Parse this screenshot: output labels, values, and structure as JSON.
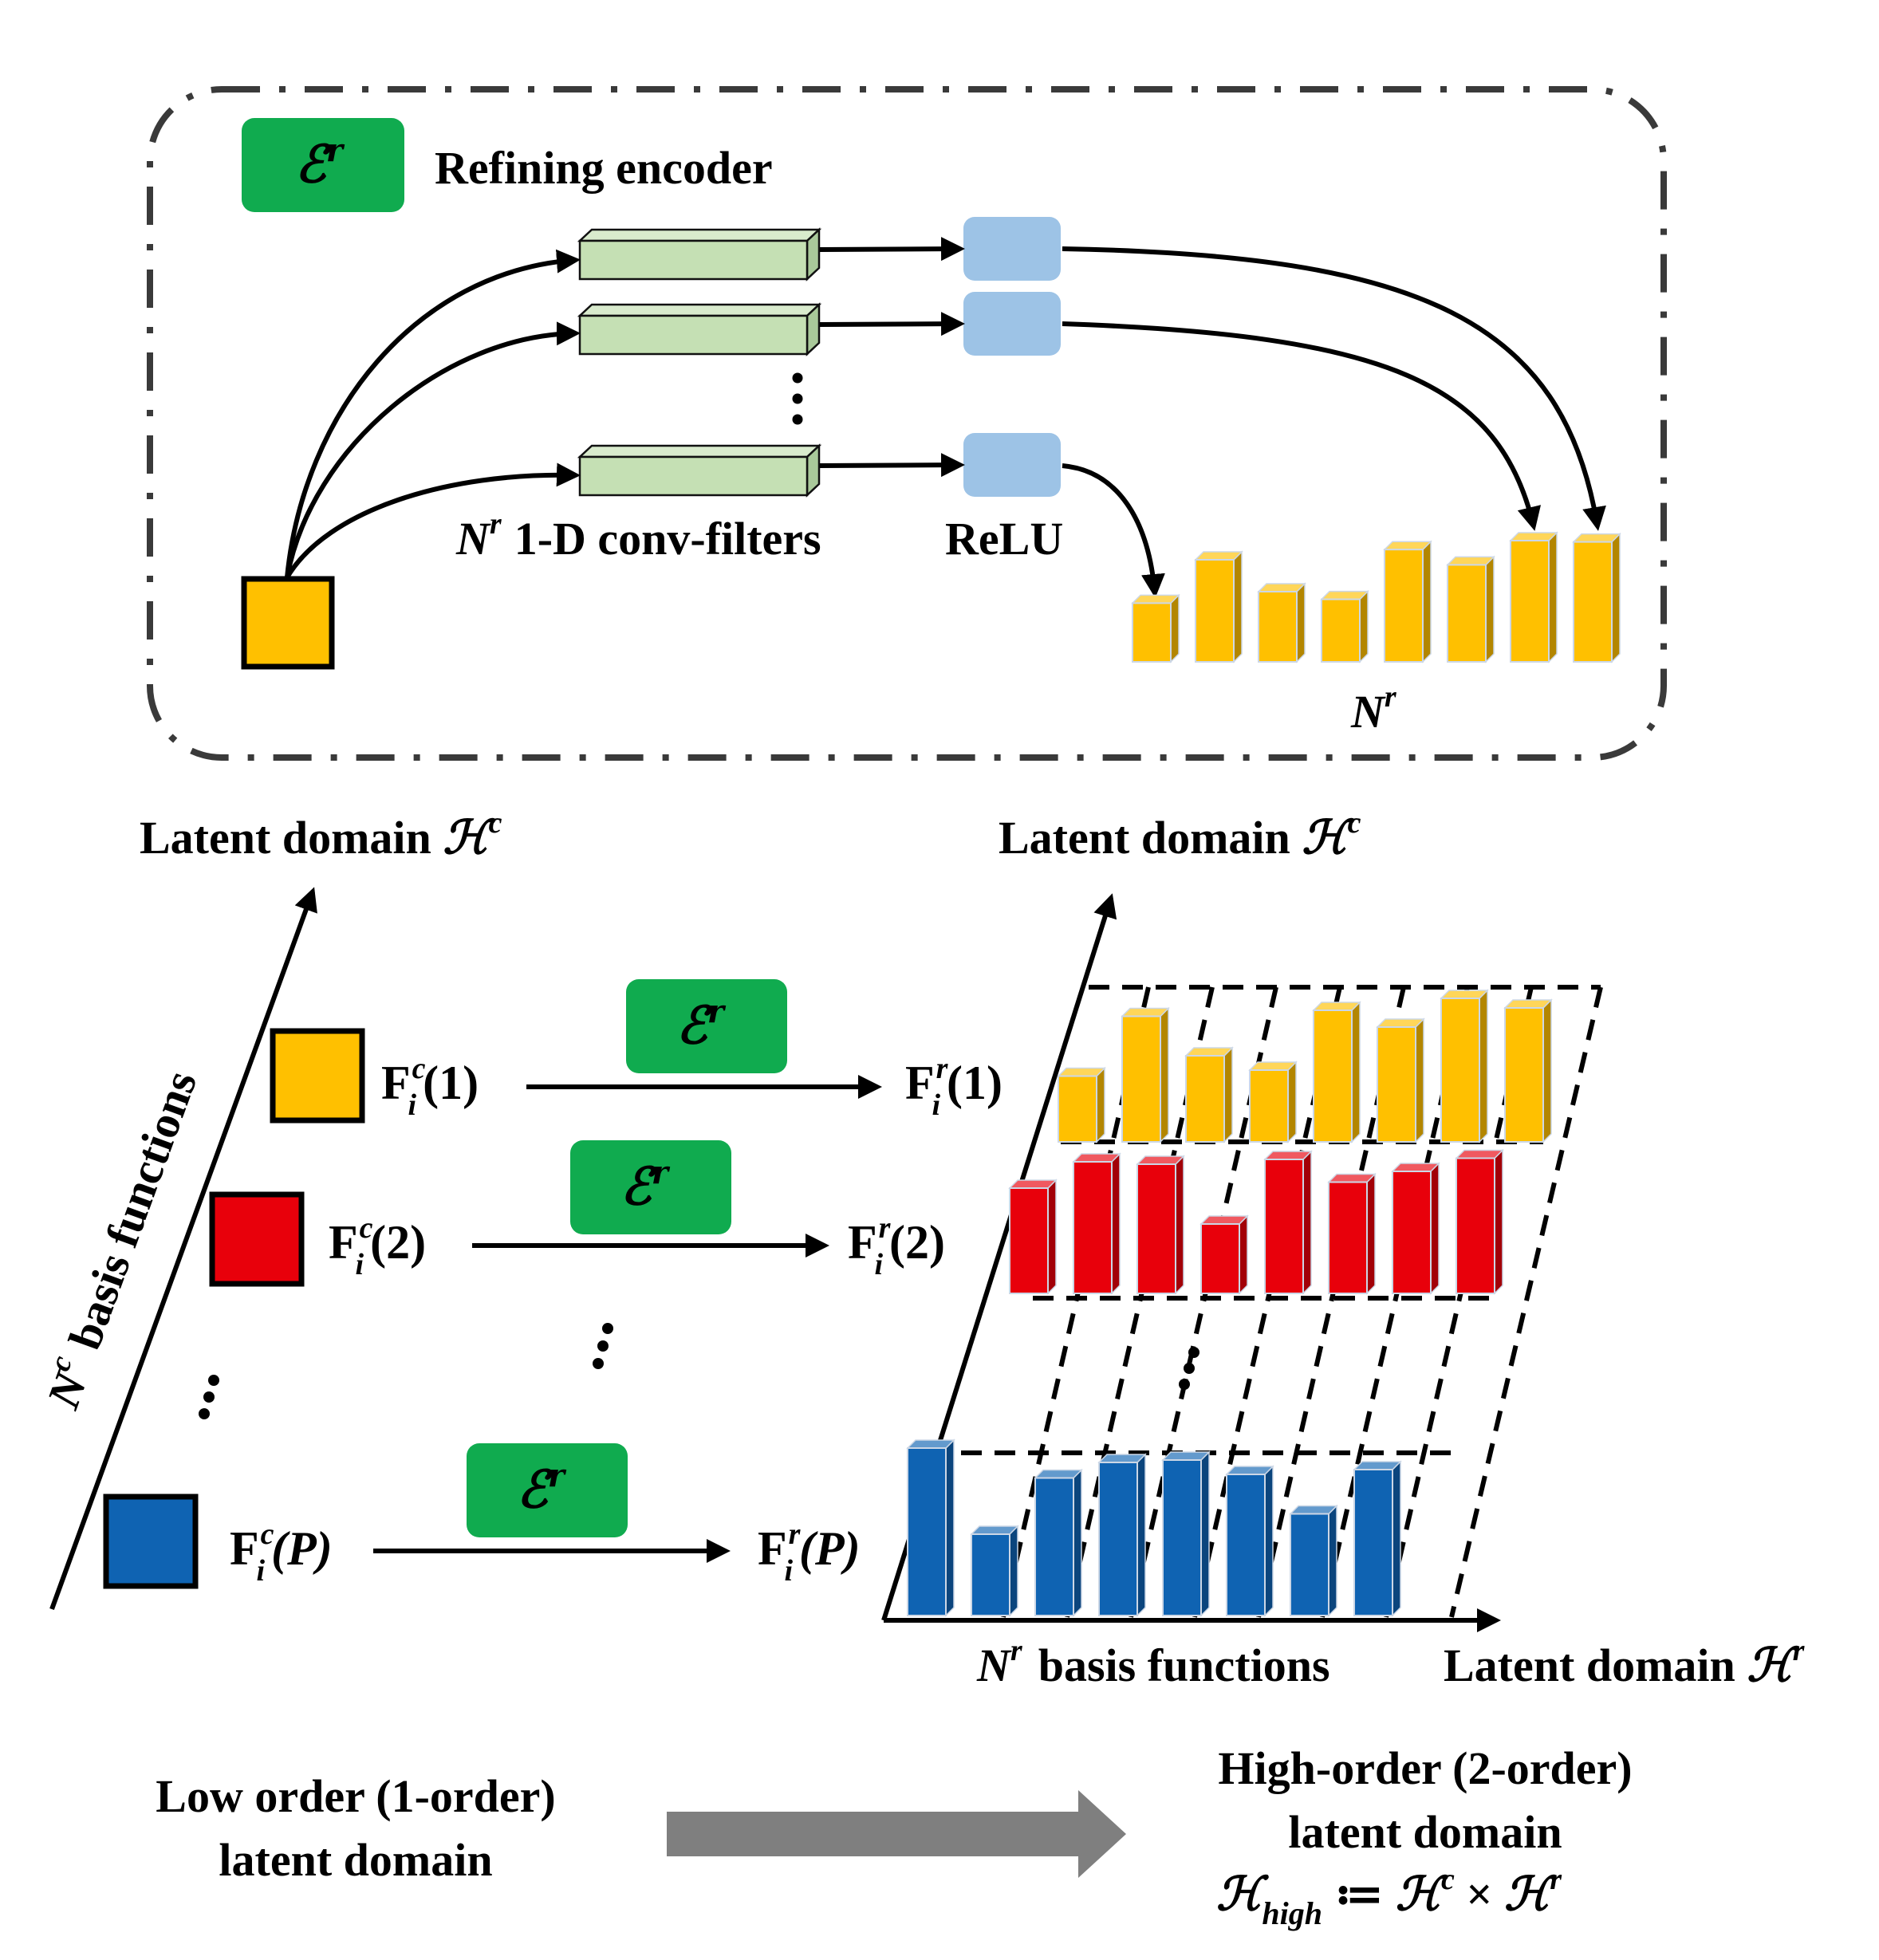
{
  "colors": {
    "encoder_green": "#10ab4f",
    "filter_green": "#c5e0b4",
    "relu_blue": "#9dc3e6",
    "yellow": "#ffc000",
    "red": "#e8000b",
    "blue": "#0f63b2",
    "arrow_gray": "#7f7f7f"
  },
  "encoder": {
    "box_symbol": "ℰ",
    "box_sup": "r",
    "title": "Refining encoder",
    "filters_N": "N",
    "filters_sup": "r",
    "filters_label": "1-D conv-filters",
    "relu_label": "ReLU",
    "output_N": "N",
    "output_sup": "r",
    "output_bar_levels": [
      0.46,
      0.8,
      0.55,
      0.49,
      0.88,
      0.76,
      0.95,
      0.94
    ]
  },
  "left_axis": {
    "title": "Latent domain ",
    "title_symbol": "ℋ",
    "title_sup": "c",
    "side_N": "N",
    "side_sup": "c",
    "side_label": "basis functions"
  },
  "rows": [
    {
      "in_F": "F",
      "in_sup": "c",
      "in_sub": "i",
      "in_arg": "(1)",
      "out_F": "F",
      "out_sup": "r",
      "out_sub": "i",
      "out_arg": "(1)",
      "enc_symbol": "ℰ",
      "enc_sup": "r",
      "color": "yellow"
    },
    {
      "in_F": "F",
      "in_sup": "c",
      "in_sub": "i",
      "in_arg": "(2)",
      "out_F": "F",
      "out_sup": "r",
      "out_sub": "i",
      "out_arg": "(2)",
      "enc_symbol": "ℰ",
      "enc_sup": "r",
      "color": "red"
    },
    {
      "in_F": "F",
      "in_sup": "c",
      "in_sub": "i",
      "in_arg": "(P)",
      "out_F": "F",
      "out_sup": "r",
      "out_sub": "i",
      "out_arg": "(P)",
      "enc_symbol": "ℰ",
      "enc_sup": "r",
      "color": "blue"
    }
  ],
  "right_axes": {
    "title_top": "Latent domain ",
    "title_top_symbol": "ℋ",
    "title_top_sup": "c",
    "bottom_N": "N",
    "bottom_sup": "r",
    "bottom_label": "basis functions",
    "title_right": "Latent domain ",
    "title_right_symbol": "ℋ",
    "title_right_sup": "r",
    "bar_levels": {
      "yellow": [
        0.55,
        1.05,
        0.72,
        0.6,
        1.1,
        0.96,
        1.2,
        1.12
      ],
      "red": [
        0.88,
        1.1,
        1.08,
        0.58,
        1.12,
        0.93,
        1.02,
        1.13
      ],
      "blue": [
        1.4,
        0.68,
        1.15,
        1.28,
        1.3,
        1.18,
        0.85,
        1.22
      ]
    }
  },
  "bottom": {
    "left_line1": "Low order (1-order)",
    "left_line2": "latent domain",
    "right_line1": "High-order (2-order)",
    "right_line2": "latent domain",
    "formula_H": "ℋ",
    "formula_sub": "high",
    "formula_assign": " ≔ ",
    "formula_H2": "ℋ",
    "formula_sup2": "c",
    "formula_times": " × ",
    "formula_H3": "ℋ",
    "formula_sup3": "r"
  }
}
